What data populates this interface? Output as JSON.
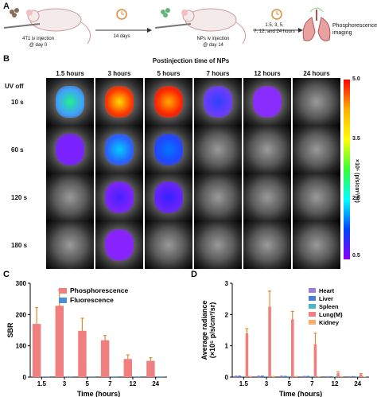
{
  "panelA": {
    "letter": "A",
    "step1": "4T1 iv injection\n@ day 0",
    "step2": "14 days",
    "step3": "NPs iv injection\n@ day 14",
    "step4": "1.5, 3, 5,\n7, 12, and 24 hours",
    "step5": "Phosphorescence\nimaging"
  },
  "panelB": {
    "letter": "B",
    "title": "Postinjection time of NPs",
    "columns": [
      "1.5 hours",
      "3 hours",
      "5 hours",
      "7 hours",
      "12 hours",
      "24 hours"
    ],
    "rows": [
      "10 s",
      "60 s",
      "120 s",
      "180 s"
    ],
    "uv_label": "UV off",
    "colorbar_label": "×10⁵ (p/s/cm²/sr)",
    "colorbar_ticks": [
      "5.0",
      "3.5",
      "2.0",
      "0.5"
    ]
  },
  "chart_data": [
    {
      "type": "bar",
      "panel": "C",
      "categories": [
        "1.5",
        "3",
        "5",
        "7",
        "12",
        "24"
      ],
      "series": [
        {
          "name": "Phosphorescence",
          "values": [
            170,
            228,
            148,
            118,
            58,
            52
          ],
          "errors": [
            52,
            50,
            40,
            15,
            13,
            10
          ],
          "color": "#f08080"
        },
        {
          "name": "Fluorescence",
          "values": [
            2,
            2,
            2,
            2,
            2,
            2
          ],
          "errors": [
            0,
            0,
            0,
            0,
            0,
            0
          ],
          "color": "#4a90d9"
        }
      ],
      "xlabel": "Time (hours)",
      "ylabel": "SBR",
      "ylim": [
        0,
        300
      ],
      "yticks": [
        "0",
        "100",
        "200",
        "300"
      ],
      "legend": "top-right"
    },
    {
      "type": "bar",
      "panel": "D",
      "categories": [
        "1.5",
        "3",
        "5",
        "7",
        "12",
        "24"
      ],
      "series": [
        {
          "name": "Heart",
          "values": [
            0.05,
            0.05,
            0.05,
            0.04,
            0.03,
            0.03
          ],
          "color": "#9b7fd4"
        },
        {
          "name": "Liver",
          "values": [
            0.05,
            0.05,
            0.04,
            0.04,
            0.03,
            0.03
          ],
          "color": "#4a7fd4"
        },
        {
          "name": "Spleen",
          "values": [
            0.03,
            0.03,
            0.03,
            0.03,
            0.02,
            0.02
          ],
          "color": "#48b8c8"
        },
        {
          "name": "Lung(M)",
          "values": [
            1.4,
            2.25,
            1.85,
            1.05,
            0.12,
            0.08
          ],
          "errors": [
            0.15,
            0.5,
            0.25,
            0.35,
            0.05,
            0.03
          ],
          "color": "#f08080"
        },
        {
          "name": "Kidney",
          "values": [
            0.04,
            0.04,
            0.04,
            0.03,
            0.03,
            0.02
          ],
          "color": "#f5b070"
        }
      ],
      "xlabel": "Time (hours)",
      "ylabel": "Average radiance\n(×10⁵ p/s/cm²/sr)",
      "ylim": [
        0,
        3
      ],
      "yticks": [
        "0",
        "1",
        "2",
        "3"
      ],
      "legend": "top-right"
    }
  ]
}
